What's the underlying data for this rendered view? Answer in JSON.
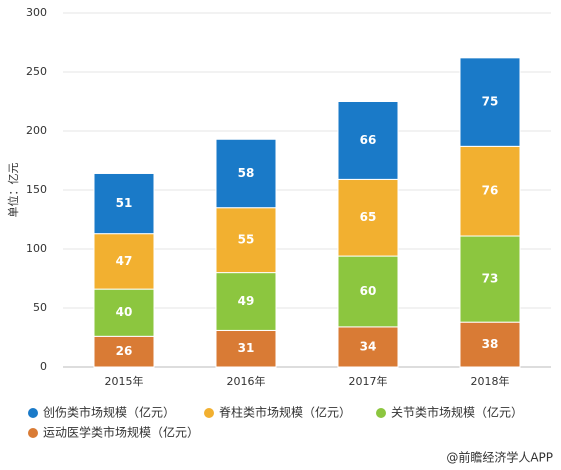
{
  "chart_data": {
    "type": "stacked_bar",
    "y_label": "单位：亿元",
    "categories": [
      "2015年",
      "2016年",
      "2017年",
      "2018年"
    ],
    "series": [
      {
        "name": "创伤类市场规模（亿元）",
        "color": "#1a7ac8",
        "values": [
          51,
          58,
          66,
          75
        ]
      },
      {
        "name": "脊柱类市场规模（亿元）",
        "color": "#f2b030",
        "values": [
          47,
          55,
          65,
          76
        ]
      },
      {
        "name": "关节类市场规模（亿元）",
        "color": "#8cc63f",
        "values": [
          40,
          49,
          60,
          73
        ]
      },
      {
        "name": "运动医学类市场规模（亿元）",
        "color": "#d97b35",
        "values": [
          26,
          31,
          34,
          38
        ]
      }
    ],
    "ylim": [
      0,
      300
    ],
    "yticks": [
      0,
      50,
      100,
      150,
      200,
      250,
      300
    ],
    "grid": true
  },
  "footer": "@前瞻经济学人APP"
}
